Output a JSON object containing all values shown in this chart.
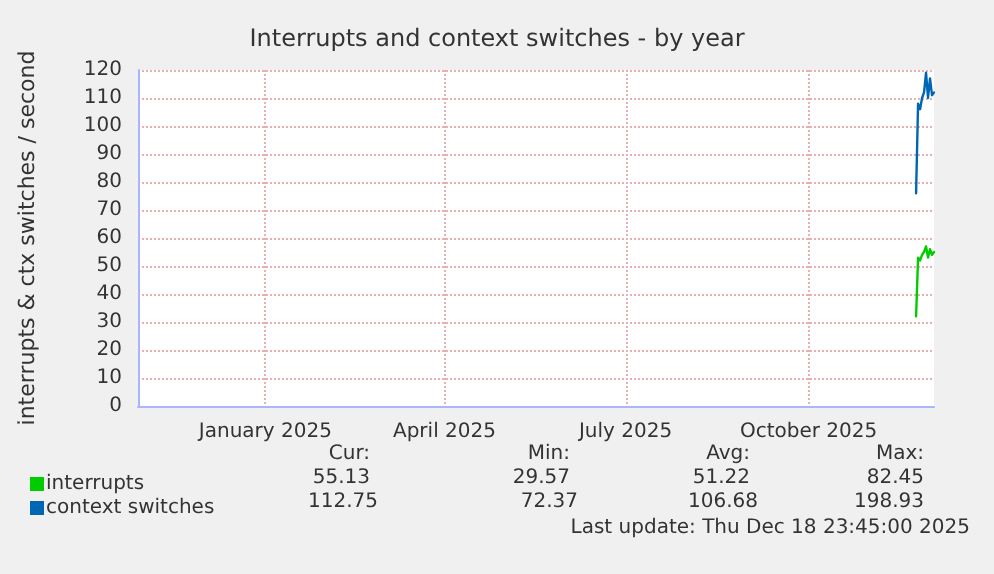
{
  "chart_data": {
    "type": "line",
    "title": "Interrupts and context switches - by year",
    "ylabel": "interrupts & ctx switches / second",
    "x": [
      "2025-12-09",
      "2025-12-10",
      "2025-12-11",
      "2025-12-12",
      "2025-12-13",
      "2025-12-14",
      "2025-12-15",
      "2025-12-16",
      "2025-12-17",
      "2025-12-18"
    ],
    "series": [
      {
        "name": "interrupts",
        "color": "#00cc00",
        "values": [
          32,
          53,
          52,
          54,
          55,
          57,
          53,
          56,
          54,
          55
        ]
      },
      {
        "name": "context switches",
        "color": "#0066b3",
        "values": [
          76,
          108,
          106,
          110,
          112,
          119,
          110,
          117,
          111,
          112
        ]
      }
    ],
    "xlim": [
      "2024-11-13",
      "2025-12-18"
    ],
    "xticks": [
      {
        "value": "2025-01-16",
        "label": "January 2025"
      },
      {
        "value": "2025-04-16",
        "label": "April 2025"
      },
      {
        "value": "2025-07-16",
        "label": "July 2025"
      },
      {
        "value": "2025-10-16",
        "label": "October 2025"
      }
    ],
    "ylim": [
      0,
      120
    ],
    "yticks": [
      0,
      10,
      20,
      30,
      40,
      50,
      60,
      70,
      80,
      90,
      100,
      110,
      120
    ],
    "grid": true,
    "legend": "bottom left",
    "marker": "none",
    "line_style": "solid",
    "annotations": [
      "Cur:",
      "Min:",
      "Avg:",
      "Max:",
      "55.13",
      "29.57",
      "51.22",
      "82.45",
      "112.75",
      "72.37",
      "106.68",
      "198.93",
      "Last update: Thu Dec 18 23:45:00 2025"
    ]
  }
}
